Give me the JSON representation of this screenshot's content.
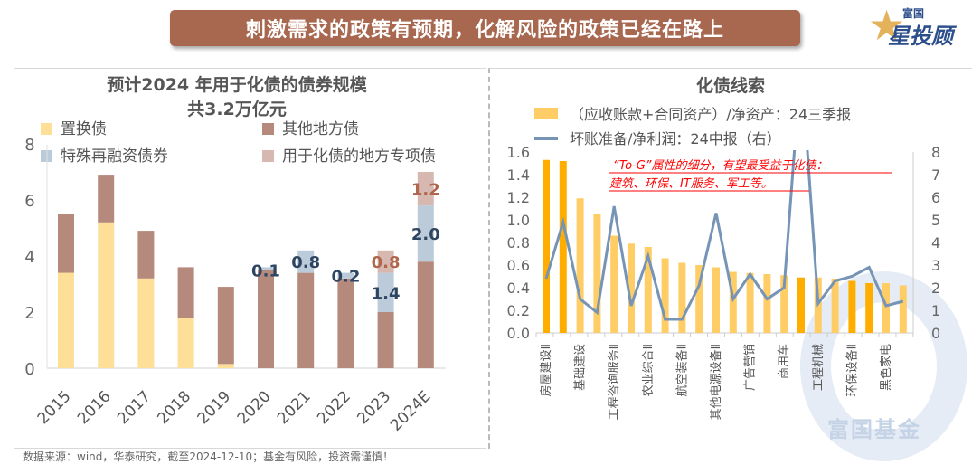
{
  "header": {
    "title": "刺激需求的政策有预期，化解风险的政策已经在路上",
    "logo_small": "富国",
    "logo_large": "星投顾"
  },
  "footer": "数据来源：wind，华泰研究，截至2024-12-10；基金有风险，投资需谨慎！",
  "watermark": "富国基金",
  "colors": {
    "replace": "#fedf98",
    "other": "#b5897c",
    "special": "#bccbd9",
    "project": "#d7b8b1",
    "bar": "#ffcd66",
    "bar_hi": "#ffae00",
    "line": "#7594b6",
    "annot": "#ff0000"
  },
  "chart_data": [
    {
      "type": "bar",
      "stacked": true,
      "title": "预计2024 年用于化债的债券规模",
      "subtitle": "共3.2万亿元",
      "categories": [
        "2015",
        "2016",
        "2017",
        "2018",
        "2019",
        "2020",
        "2021",
        "2022",
        "2023",
        "2024E"
      ],
      "ylim": [
        0,
        8
      ],
      "yticks": [
        "0",
        "2",
        "4",
        "6",
        "8"
      ],
      "legend": "top",
      "series": [
        {
          "name": "置换债",
          "values": [
            3.4,
            5.2,
            3.2,
            1.8,
            0.15,
            0,
            0,
            0,
            0,
            0
          ]
        },
        {
          "name": "其他地方债",
          "values": [
            2.1,
            1.7,
            1.7,
            1.8,
            2.75,
            3.5,
            3.4,
            3.2,
            2.0,
            3.8
          ]
        },
        {
          "name": "特殊再融资债券",
          "values": [
            0,
            0,
            0,
            0,
            0,
            0.1,
            0.8,
            0.2,
            1.4,
            2.0
          ]
        },
        {
          "name": "用于化债的地方专项债",
          "values": [
            0,
            0,
            0,
            0,
            0,
            0,
            0,
            0,
            0.8,
            1.2
          ]
        }
      ],
      "data_labels": [
        {
          "cat": 5,
          "series": 2,
          "text": "0.1"
        },
        {
          "cat": 6,
          "series": 2,
          "text": "0.8"
        },
        {
          "cat": 7,
          "series": 2,
          "text": "0.2"
        },
        {
          "cat": 8,
          "series": 2,
          "text": "1.4"
        },
        {
          "cat": 8,
          "series": 3,
          "text": "0.8"
        },
        {
          "cat": 9,
          "series": 2,
          "text": "2.0"
        },
        {
          "cat": 9,
          "series": 3,
          "text": "1.2"
        }
      ]
    },
    {
      "type": "bar+line",
      "title": "化债线索",
      "x_labels": [
        "房屋建设Ⅱ",
        "基础建设",
        "工程咨询服务Ⅱ",
        "农业综合Ⅱ",
        "航空装备Ⅱ",
        "其他电源设备Ⅱ",
        "广告营销",
        "商用车",
        "工程机械",
        "环保设备Ⅱ",
        "黑色家电"
      ],
      "ylim": [
        0,
        1.6
      ],
      "yticks": [
        "0.0",
        "0.2",
        "0.4",
        "0.6",
        "0.8",
        "1.0",
        "1.2",
        "1.4",
        "1.6"
      ],
      "y2lim": [
        0,
        8
      ],
      "y2ticks": [
        "0",
        "1",
        "2",
        "3",
        "4",
        "5",
        "6",
        "7",
        "8"
      ],
      "bars": {
        "name": "（应收账款+合同资产）/净资产：24三季报",
        "values": [
          1.53,
          1.52,
          1.19,
          1.05,
          0.86,
          0.79,
          0.76,
          0.66,
          0.62,
          0.6,
          0.58,
          0.54,
          0.53,
          0.52,
          0.51,
          0.49,
          0.49,
          0.48,
          0.46,
          0.44,
          0.44,
          0.42
        ],
        "highlight": [
          0,
          1,
          15,
          18,
          19
        ]
      },
      "line": {
        "name": "坏账准备/净利润：24中报（右）",
        "values": [
          2.4,
          4.9,
          1.5,
          0.9,
          5.6,
          1.2,
          3.4,
          0.6,
          0.6,
          2.1,
          5.3,
          1.5,
          2.6,
          1.5,
          2.0,
          12,
          1.3,
          2.3,
          2.5,
          2.9,
          1.2,
          1.4
        ]
      },
      "annotation": [
        "“To-G”属性的细分，有望最受益于化债：",
        "建筑、环保、IT服务、军工等。"
      ]
    }
  ]
}
